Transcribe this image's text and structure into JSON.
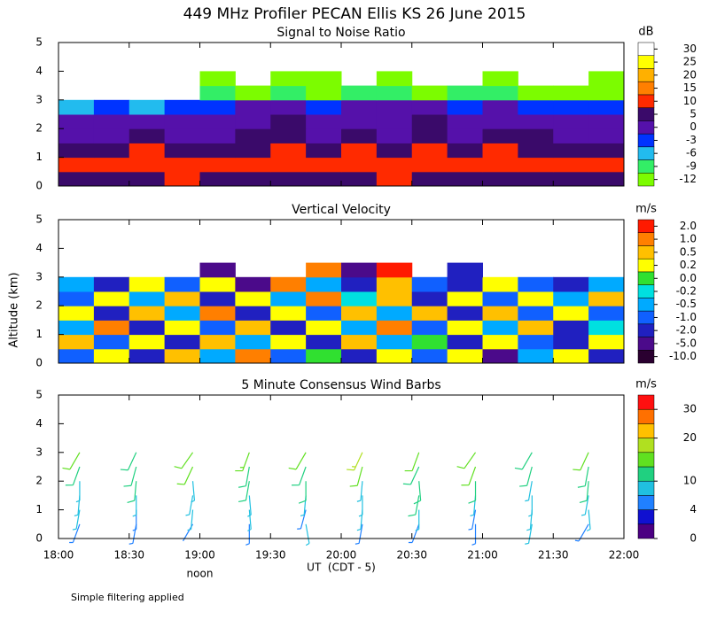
{
  "title": "449 MHz Profiler PECAN Ellis KS 26 June 2015",
  "ylabel": "Altitude (km)",
  "note": "Simple filtering applied",
  "x_axis": {
    "label": "UT  (CDT - 5)",
    "annotation": "noon",
    "xlim": [
      18,
      22
    ],
    "xticks": [
      {
        "value": 18,
        "label": "18:00"
      },
      {
        "value": 18.5,
        "label": "18:30"
      },
      {
        "value": 19,
        "label": "19:00"
      },
      {
        "value": 19.5,
        "label": "19:30"
      },
      {
        "value": 20,
        "label": "20:00"
      },
      {
        "value": 20.5,
        "label": "20:30"
      },
      {
        "value": 21,
        "label": "21:00"
      },
      {
        "value": 21.5,
        "label": "21:30"
      },
      {
        "value": 22,
        "label": "22:00"
      }
    ]
  },
  "chart_data": [
    {
      "type": "heatmap",
      "title": "Signal to Noise Ratio",
      "ylim": [
        0,
        5
      ],
      "yticks": [
        0,
        1,
        2,
        3,
        4,
        5
      ],
      "x": [
        18.125,
        18.375,
        18.625,
        18.875,
        19.125,
        19.375,
        19.625,
        19.875,
        20.125,
        20.375,
        20.625,
        20.875,
        21.125,
        21.375,
        21.625,
        21.875
      ],
      "y": [
        0.25,
        0.75,
        1.25,
        1.75,
        2.25,
        2.75,
        3.25,
        3.75
      ],
      "z": [
        [
          8,
          9,
          8,
          10,
          9,
          8,
          9,
          8,
          9,
          10,
          9,
          8,
          9,
          8,
          9,
          8
        ],
        [
          14,
          12,
          13,
          10,
          11,
          12,
          13,
          12,
          13,
          11,
          12,
          14,
          12,
          13,
          12,
          11
        ],
        [
          9,
          7,
          10,
          6,
          8,
          9,
          11,
          8,
          10,
          9,
          11,
          8,
          10,
          9,
          8,
          7
        ],
        [
          4,
          3,
          5,
          2,
          4,
          6,
          8,
          3,
          5,
          4,
          7,
          3,
          6,
          8,
          4,
          3
        ],
        [
          1,
          2,
          1,
          0,
          2,
          3,
          6,
          1,
          2,
          3,
          5,
          1,
          3,
          2,
          1,
          2
        ],
        [
          -4,
          -3,
          -5,
          -2,
          -1,
          0,
          3,
          -1,
          0,
          2,
          1,
          -1,
          2,
          -2,
          -3,
          -1
        ],
        [
          null,
          null,
          null,
          null,
          -9,
          -10,
          -8,
          -10,
          -9,
          -8,
          -10,
          -9,
          -8,
          -10,
          -11,
          -10
        ],
        [
          null,
          null,
          null,
          null,
          -11,
          null,
          -11,
          -10,
          null,
          -11,
          null,
          null,
          -11,
          null,
          null,
          -11
        ]
      ],
      "colorbar": {
        "unit": "dB",
        "label_at": "center",
        "levels": [
          -12,
          -9,
          -6,
          -3,
          0,
          5,
          10,
          15,
          20,
          25,
          30
        ],
        "colors": [
          "#7cfc00",
          "#33ee66",
          "#22bbee",
          "#0033ff",
          "#5511aa",
          "#3a0a6a",
          "#ff2a00",
          "#ff7f00",
          "#ffb000",
          "#ffff00",
          "#ffffff"
        ],
        "ticks": [
          -12,
          -9,
          -6,
          -3,
          0,
          5,
          10,
          15,
          20,
          25,
          30
        ]
      }
    },
    {
      "type": "heatmap",
      "title": "Vertical Velocity",
      "ylim": [
        0,
        5
      ],
      "yticks": [
        0,
        1,
        2,
        3,
        4,
        5
      ],
      "x": [
        18.125,
        18.375,
        18.625,
        18.875,
        19.125,
        19.375,
        19.625,
        19.875,
        20.125,
        20.375,
        20.625,
        20.875,
        21.125,
        21.375,
        21.625,
        21.875
      ],
      "y": [
        0.25,
        0.75,
        1.25,
        1.75,
        2.25,
        2.75,
        3.25
      ],
      "z": [
        [
          -1,
          0.3,
          -2,
          0.6,
          -0.3,
          1.2,
          -0.6,
          0.1,
          -1.5,
          0.4,
          -0.8,
          0.3,
          -2.5,
          -0.4,
          0.2,
          -1.2
        ],
        [
          0.5,
          -0.7,
          0.2,
          -1.5,
          0.8,
          -0.3,
          0.3,
          -1.2,
          0.6,
          -0.4,
          0.1,
          -1.6,
          0.4,
          -0.7,
          -1.1,
          0.3
        ],
        [
          -0.4,
          1.1,
          -1.3,
          0.2,
          -0.6,
          0.7,
          -1.8,
          0.4,
          -0.3,
          1.5,
          -0.9,
          0.2,
          -0.5,
          0.6,
          -1.4,
          -0.2
        ],
        [
          0.3,
          -1.1,
          0.6,
          -0.4,
          1.3,
          -1.6,
          0.4,
          -0.8,
          0.9,
          -0.3,
          0.5,
          -1.2,
          0.7,
          -0.6,
          0.2,
          -0.9
        ],
        [
          -0.7,
          0.2,
          -0.3,
          0.9,
          -1.4,
          0.3,
          -0.5,
          1.6,
          -0.2,
          0.6,
          -1.3,
          0.4,
          -0.8,
          0.3,
          -0.4,
          0.5
        ],
        [
          -0.3,
          -1.2,
          0.4,
          -0.6,
          0.2,
          -2.2,
          1.4,
          -0.4,
          -1.7,
          0.8,
          -0.6,
          -1.1,
          0.3,
          -0.9,
          -1.3,
          -0.5
        ],
        [
          null,
          null,
          null,
          null,
          -2.6,
          null,
          null,
          1.8,
          -3,
          2.5,
          null,
          -1.5,
          null,
          null,
          null,
          null
        ]
      ],
      "colorbar": {
        "unit": "m/s",
        "label_at": "center",
        "levels": [
          -10,
          -5,
          -2,
          -1,
          -0.5,
          -0.2,
          0,
          0.2,
          0.5,
          1,
          2
        ],
        "colors": [
          "#2a0030",
          "#4b0a8a",
          "#2020c0",
          "#1060ff",
          "#00aaff",
          "#00e0e0",
          "#30e030",
          "#ffff00",
          "#ffc000",
          "#ff7f00",
          "#ff1a00"
        ],
        "ticks": [
          {
            "value": -10,
            "label": "-10.0"
          },
          {
            "value": -5,
            "label": "-5.0"
          },
          {
            "value": -2,
            "label": "-2.0"
          },
          {
            "value": -1,
            "label": "-1.0"
          },
          {
            "value": -0.5,
            "label": "-0.5"
          },
          {
            "value": -0.2,
            "label": "-0.2"
          },
          {
            "value": 0,
            "label": "0.0"
          },
          {
            "value": 0.2,
            "label": "0.2"
          },
          {
            "value": 0.5,
            "label": "0.5"
          },
          {
            "value": 1,
            "label": "1.0"
          },
          {
            "value": 2,
            "label": "2.0"
          }
        ]
      }
    },
    {
      "type": "barbs",
      "title": "5 Minute Consensus Wind Barbs",
      "ylim": [
        0,
        5
      ],
      "yticks": [
        0,
        1,
        2,
        3,
        4,
        5
      ],
      "x": [
        18.15,
        18.55,
        18.95,
        19.35,
        19.75,
        20.15,
        20.55,
        20.95,
        21.35,
        21.75,
        18.15,
        18.55,
        18.95,
        19.35,
        19.75,
        20.15,
        20.55,
        20.95,
        21.35,
        21.75,
        18.15,
        18.55,
        18.95,
        19.35,
        19.75,
        20.15,
        20.55,
        20.95,
        21.35,
        21.75,
        18.15,
        18.55,
        18.95,
        19.35,
        19.75,
        20.15,
        20.55,
        20.95,
        21.35,
        21.75,
        18.15,
        18.55,
        18.95,
        19.35,
        19.75,
        20.15,
        20.55,
        20.95,
        21.35,
        21.75,
        18.15,
        18.55,
        18.95,
        19.35,
        19.75,
        20.15,
        20.55,
        20.95,
        21.35,
        21.75
      ],
      "y": [
        0.5,
        0.5,
        0.5,
        0.5,
        0.5,
        0.5,
        0.5,
        0.5,
        0.5,
        0.5,
        1,
        1,
        1,
        1,
        1,
        1,
        1,
        1,
        1,
        1,
        1.5,
        1.5,
        1.5,
        1.5,
        1.5,
        1.5,
        1.5,
        1.5,
        1.5,
        1.5,
        2,
        2,
        2,
        2,
        2,
        2,
        2,
        2,
        2,
        2,
        2.5,
        2.5,
        2.5,
        2.5,
        2.5,
        2.5,
        2.5,
        2.5,
        2.5,
        2.5,
        3,
        3,
        3,
        3,
        3,
        3,
        3,
        3,
        3,
        3
      ],
      "speed": [
        5,
        6,
        4,
        5,
        7,
        6,
        5,
        6,
        7,
        6,
        7,
        6,
        8,
        7,
        6,
        8,
        7,
        6,
        8,
        7,
        8,
        9,
        7,
        8,
        9,
        8,
        10,
        9,
        8,
        7,
        9,
        10,
        8,
        11,
        10,
        9,
        11,
        10,
        9,
        10,
        11,
        12,
        13,
        12,
        11,
        14,
        12,
        13,
        11,
        12,
        13,
        12,
        14,
        15,
        13,
        16,
        14,
        13,
        12,
        14
      ],
      "direction": [
        200,
        190,
        210,
        180,
        170,
        190,
        200,
        180,
        190,
        210,
        190,
        180,
        185,
        175,
        195,
        185,
        180,
        190,
        185,
        175,
        185,
        180,
        190,
        175,
        185,
        180,
        190,
        185,
        180,
        190,
        180,
        185,
        175,
        190,
        180,
        185,
        175,
        180,
        190,
        185,
        200,
        195,
        205,
        190,
        200,
        195,
        205,
        200,
        195,
        190,
        210,
        205,
        215,
        200,
        210,
        205,
        200,
        215,
        210,
        205
      ],
      "colorbar": {
        "unit": "m/s",
        "label_at": "edge",
        "levels": [
          0,
          2,
          4,
          7,
          10,
          13,
          16,
          20,
          25,
          30,
          35
        ],
        "colors": [
          "#4b0082",
          "#1010d0",
          "#2080ff",
          "#20c0e0",
          "#20d080",
          "#60e020",
          "#b0e020",
          "#ffc000",
          "#ff7000",
          "#ff1010"
        ],
        "ticks": [
          0,
          4,
          10,
          20,
          30
        ]
      }
    }
  ]
}
